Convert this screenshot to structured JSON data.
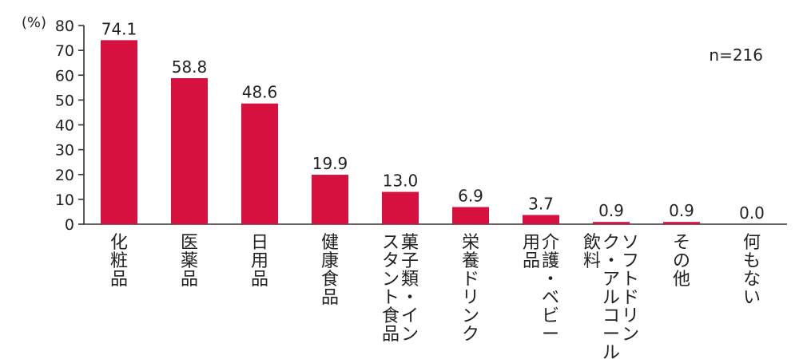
{
  "chart_data": {
    "type": "bar",
    "unit_label": "(%)",
    "note": "n=216",
    "ylim": [
      0,
      80
    ],
    "yticks": [
      0,
      10,
      20,
      30,
      40,
      50,
      60,
      70,
      80
    ],
    "bar_color": "#d6103f",
    "categories": [
      [
        "化粧品"
      ],
      [
        "医薬品"
      ],
      [
        "日用品"
      ],
      [
        "健康食品"
      ],
      [
        "菓子類・イン",
        "スタント食品"
      ],
      [
        "栄養ドリンク"
      ],
      [
        "介護・ベビー",
        "用品"
      ],
      [
        "ソフトドリン",
        "ク・アルコール",
        "飲料"
      ],
      [
        "その他"
      ],
      [
        "何もない"
      ]
    ],
    "values": [
      74.1,
      58.8,
      48.6,
      19.9,
      13.0,
      6.9,
      3.7,
      0.9,
      0.9,
      0.0
    ],
    "value_labels": [
      "74.1",
      "58.8",
      "48.6",
      "19.9",
      "13.0",
      "6.9",
      "3.7",
      "0.9",
      "0.9",
      "0.0"
    ]
  }
}
